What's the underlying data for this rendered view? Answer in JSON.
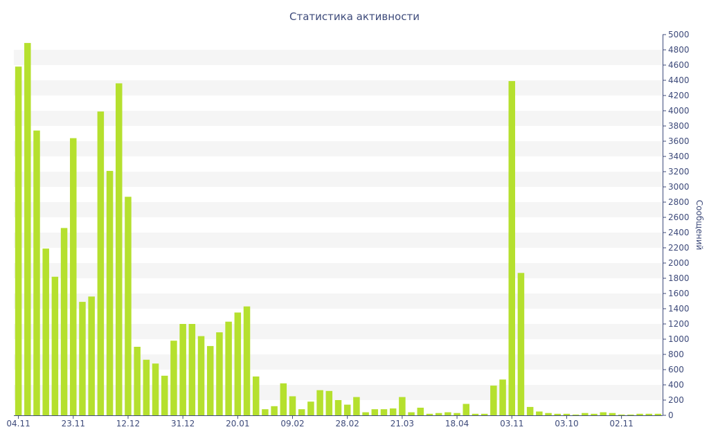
{
  "chart_data": {
    "type": "bar",
    "title": "Статистика активности",
    "xlabel": "",
    "ylabel": "Сообщений",
    "ylim": [
      0,
      5000
    ],
    "y_ticks": [
      0,
      200,
      400,
      600,
      800,
      1000,
      1200,
      1400,
      1600,
      1800,
      2000,
      2200,
      2400,
      2600,
      2800,
      3000,
      3200,
      3400,
      3600,
      3800,
      4000,
      4200,
      4400,
      4600,
      4800,
      5000
    ],
    "x_tick_labels": [
      {
        "label": "04.11",
        "index": 0
      },
      {
        "label": "23.11",
        "index": 6
      },
      {
        "label": "12.12",
        "index": 12
      },
      {
        "label": "31.12",
        "index": 18
      },
      {
        "label": "20.01",
        "index": 24
      },
      {
        "label": "09.02",
        "index": 30
      },
      {
        "label": "28.02",
        "index": 36
      },
      {
        "label": "21.03",
        "index": 42
      },
      {
        "label": "18.04",
        "index": 48
      },
      {
        "label": "03.11",
        "index": 54
      },
      {
        "label": "03.10",
        "index": 60
      },
      {
        "label": "02.11",
        "index": 66
      }
    ],
    "values": [
      4580,
      4890,
      3740,
      2190,
      1820,
      2460,
      3640,
      1490,
      1560,
      3990,
      3210,
      4360,
      2870,
      900,
      730,
      680,
      520,
      980,
      1200,
      1200,
      1040,
      910,
      1090,
      1230,
      1350,
      1430,
      510,
      80,
      120,
      420,
      250,
      80,
      180,
      330,
      320,
      200,
      140,
      240,
      40,
      80,
      80,
      90,
      240,
      40,
      100,
      20,
      30,
      40,
      30,
      150,
      20,
      20,
      390,
      470,
      4390,
      1870,
      110,
      50,
      30,
      20,
      20,
      10,
      30,
      20,
      40,
      30,
      10,
      10,
      20,
      20,
      20
    ],
    "grid": true,
    "grid_style": "alternating horizontal bands",
    "y_axis_position": "right",
    "colors": {
      "bar": "#b5e02e",
      "band": "#f5f5f5",
      "axis": "#3d4a7a",
      "text": "#3d4a7a"
    }
  }
}
